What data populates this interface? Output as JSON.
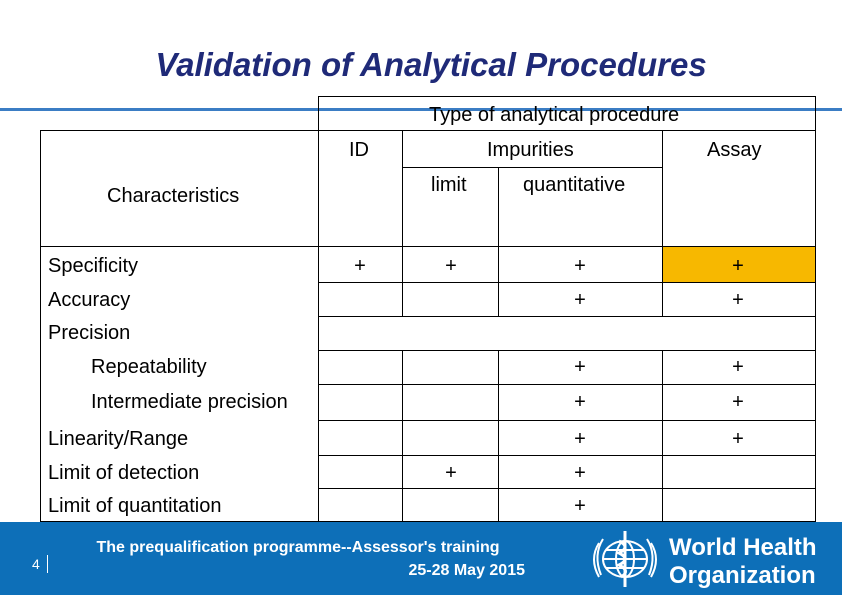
{
  "title": "Validation of Analytical Procedures",
  "table": {
    "header": {
      "group": "Type of analytical procedure",
      "id": "ID",
      "impurities": "Impurities",
      "assay": "Assay",
      "limit": "limit",
      "quantitative": "quantitative",
      "characteristics": "Characteristics"
    },
    "rows": [
      {
        "label": "Specificity",
        "id": "+",
        "limit": "+",
        "quant": "+",
        "assay": "+"
      },
      {
        "label": "Accuracy",
        "id": "",
        "limit": "",
        "quant": "+",
        "assay": "+"
      },
      {
        "label": "Precision",
        "id": "",
        "limit": "",
        "quant": "",
        "assay": ""
      },
      {
        "label": "Repeatability",
        "id": "",
        "limit": "",
        "quant": "+",
        "assay": "+"
      },
      {
        "label": "Intermediate precision",
        "id": "",
        "limit": "",
        "quant": "+",
        "assay": "+"
      },
      {
        "label": "Linearity/Range",
        "id": "",
        "limit": "",
        "quant": "+",
        "assay": "+"
      },
      {
        "label": "Limit of detection",
        "id": "",
        "limit": "+",
        "quant": "+",
        "assay": ""
      },
      {
        "label": "Limit of quantitation",
        "id": "",
        "limit": "",
        "quant": "+",
        "assay": ""
      }
    ],
    "highlight_color": "#f7b800"
  },
  "footer": {
    "page": "4",
    "line1": "The prequalification programme--Assessor's training",
    "line2": "25-28 May 2015",
    "org_line1": "World Health",
    "org_line2": "Organization",
    "logo_icon": "who-emblem-icon",
    "background": "#0d6fb8"
  }
}
